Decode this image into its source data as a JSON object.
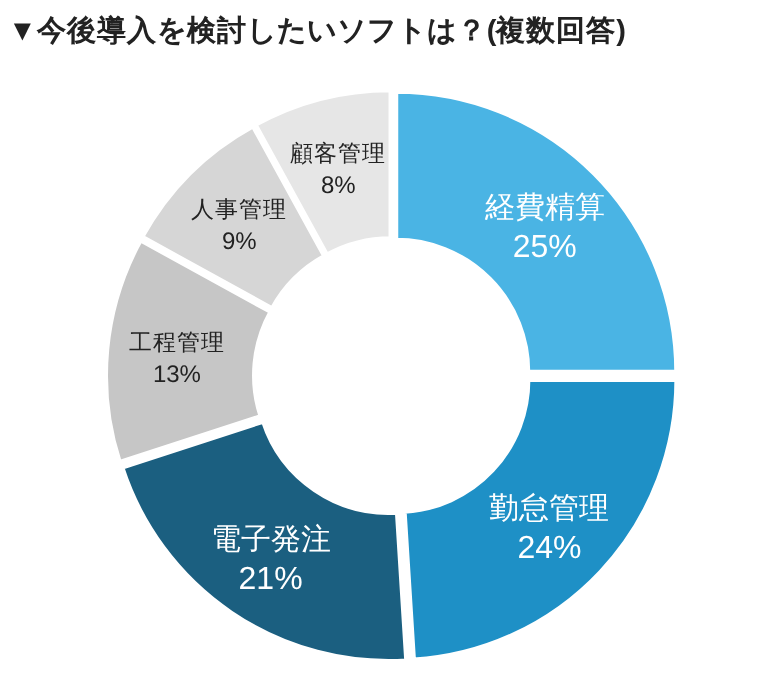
{
  "chart_data": {
    "type": "donut",
    "title": "▼今後導入を検討したいソフトは？(複数回答)",
    "categories": [
      "経費精算",
      "勤怠管理",
      "電子発注",
      "工程管理",
      "人事管理",
      "顧客管理"
    ],
    "values": [
      25,
      24,
      21,
      13,
      9,
      8
    ],
    "value_labels": [
      "25%",
      "24%",
      "21%",
      "13%",
      "9%",
      "8%"
    ],
    "colors": [
      "#4ab4e4",
      "#1e90c6",
      "#1b5f80",
      "#c6c6c6",
      "#d6d6d6",
      "#e6e6e6"
    ]
  }
}
